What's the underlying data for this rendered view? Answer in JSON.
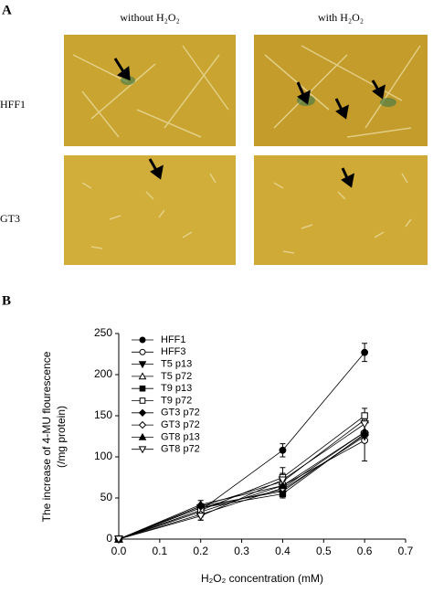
{
  "panel_a": {
    "label": "A",
    "columns": [
      "without H₂O₂",
      "with H₂O₂"
    ],
    "rows": [
      "HFF1",
      "GT3"
    ]
  },
  "panel_b": {
    "label": "B"
  },
  "chart_data": {
    "type": "line",
    "xlabel": "H₂O₂ concentration (mM)",
    "ylabel": [
      "The increase of 4-MU flourescence",
      "(/mg protein)"
    ],
    "x": [
      0,
      0.2,
      0.4,
      0.6
    ],
    "xlim": [
      0,
      0.7
    ],
    "xticks": [
      {
        "value": 0,
        "label": "0.0"
      },
      0.1,
      0.2,
      0.3,
      0.4,
      0.5,
      0.6,
      0.7
    ],
    "ylim": [
      0,
      250
    ],
    "yticks": [
      0,
      50,
      100,
      150,
      200,
      250
    ],
    "legend": "upper-left",
    "series": [
      {
        "name": "HFF1",
        "color": "#000000",
        "marker": "circle",
        "filled": true,
        "values": [
          0,
          35,
          108,
          227
        ],
        "errors": [
          0,
          8,
          8,
          11
        ]
      },
      {
        "name": "HFF3",
        "color": "#000000",
        "marker": "circle",
        "filled": false,
        "values": [
          0,
          33,
          65,
          120
        ],
        "errors": [
          0,
          10,
          15,
          25
        ]
      },
      {
        "name": "T5  p13",
        "color": "#000000",
        "marker": "triangle-down",
        "filled": true,
        "values": [
          0,
          38,
          60,
          125
        ]
      },
      {
        "name": "T5  p72",
        "color": "#000000",
        "marker": "triangle-up",
        "filled": false,
        "values": [
          0,
          40,
          70,
          145
        ]
      },
      {
        "name": "T9  p13",
        "color": "#000000",
        "marker": "square",
        "filled": true,
        "values": [
          0,
          38,
          55,
          128
        ]
      },
      {
        "name": "T9  p72",
        "color": "#000000",
        "marker": "square",
        "filled": false,
        "values": [
          0,
          35,
          75,
          150
        ],
        "errors": [
          0,
          12,
          12,
          9
        ]
      },
      {
        "name": "GT3  p72",
        "color": "#000000",
        "marker": "diamond",
        "filled": true,
        "values": [
          0,
          40,
          58,
          127
        ]
      },
      {
        "name": "GT3  p72",
        "color": "#000000",
        "marker": "diamond",
        "filled": false,
        "values": [
          0,
          30,
          62,
          130
        ]
      },
      {
        "name": "GT8  p13",
        "color": "#000000",
        "marker": "triangle-up",
        "filled": true,
        "values": [
          0,
          42,
          65,
          130
        ]
      },
      {
        "name": "GT8  p72",
        "color": "#000000",
        "marker": "triangle-down",
        "filled": false,
        "values": [
          0,
          28,
          72,
          140
        ]
      }
    ]
  }
}
